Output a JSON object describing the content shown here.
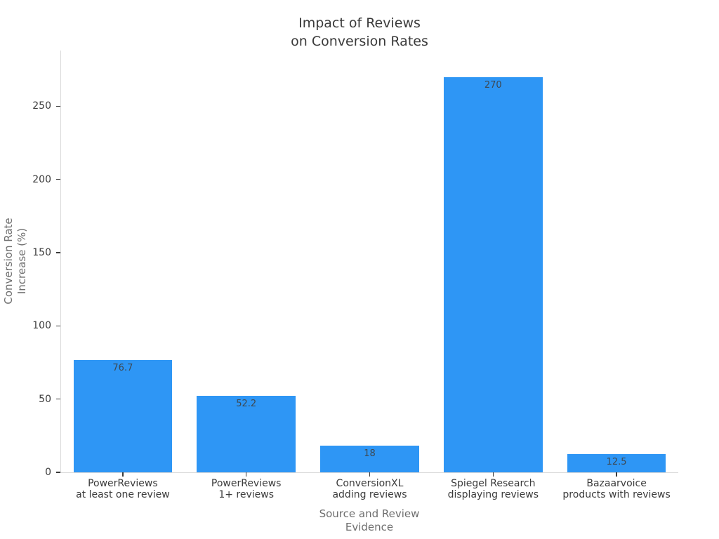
{
  "chart_data": {
    "type": "bar",
    "title": "Impact of Reviews\non Conversion Rates",
    "xlabel": "Source and Review\nEvidence",
    "ylabel": "Conversion Rate\nIncrease (%)",
    "categories": [
      "PowerReviews\nat least one review",
      "PowerReviews\n1+ reviews",
      "ConversionXL\nadding reviews",
      "Spiegel Research\ndisplaying reviews",
      "Bazaarvoice\nproducts with reviews"
    ],
    "values": [
      76.7,
      52.2,
      18,
      270,
      12.5
    ],
    "value_labels": [
      "76.7",
      "52.2",
      "18",
      "270",
      "12.5"
    ],
    "yticks": [
      0,
      50,
      100,
      150,
      200,
      250
    ],
    "ylim": [
      0,
      288
    ],
    "bar_width_fraction": 0.8,
    "grid": false,
    "legend": "none",
    "colors": {
      "bar": "#2E96F5",
      "spine": "#d9d9d9",
      "tick": "#3b3b3b",
      "tick_label": "#3b3b3b",
      "axis_title": "#6e6e6e",
      "title": "#3a3a3a",
      "value_label": "#3d4852",
      "background": "#ffffff"
    }
  }
}
